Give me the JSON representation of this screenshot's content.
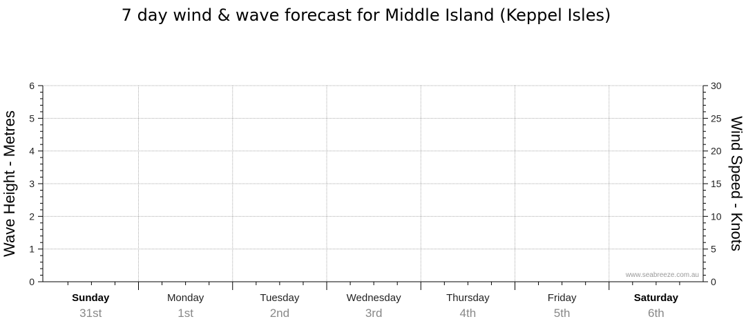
{
  "chart_data": {
    "type": "line",
    "title": "7 day wind & wave forecast for Middle Island (Keppel Isles)",
    "left_axis": {
      "label": "Wave Height - Metres",
      "ylim": [
        0,
        6
      ],
      "ticks": [
        0,
        1,
        2,
        3,
        4,
        5,
        6
      ]
    },
    "right_axis": {
      "label": "Wind Speed - Knots",
      "ylim": [
        0,
        30
      ],
      "ticks": [
        0,
        5,
        10,
        15,
        20,
        25,
        30
      ]
    },
    "days": [
      {
        "name": "Sunday",
        "date": "31st",
        "bold": true
      },
      {
        "name": "Monday",
        "date": "1st",
        "bold": false
      },
      {
        "name": "Tuesday",
        "date": "2nd",
        "bold": false
      },
      {
        "name": "Wednesday",
        "date": "3rd",
        "bold": false
      },
      {
        "name": "Thursday",
        "date": "4th",
        "bold": false
      },
      {
        "name": "Friday",
        "date": "5th",
        "bold": false
      },
      {
        "name": "Saturday",
        "date": "6th",
        "bold": true
      }
    ],
    "grid": true,
    "series": [],
    "watermark": "www.seabreeze.com.au",
    "colors": {
      "grid": "#aaaaaa",
      "axis": "#000000",
      "date_text": "#888888"
    }
  }
}
